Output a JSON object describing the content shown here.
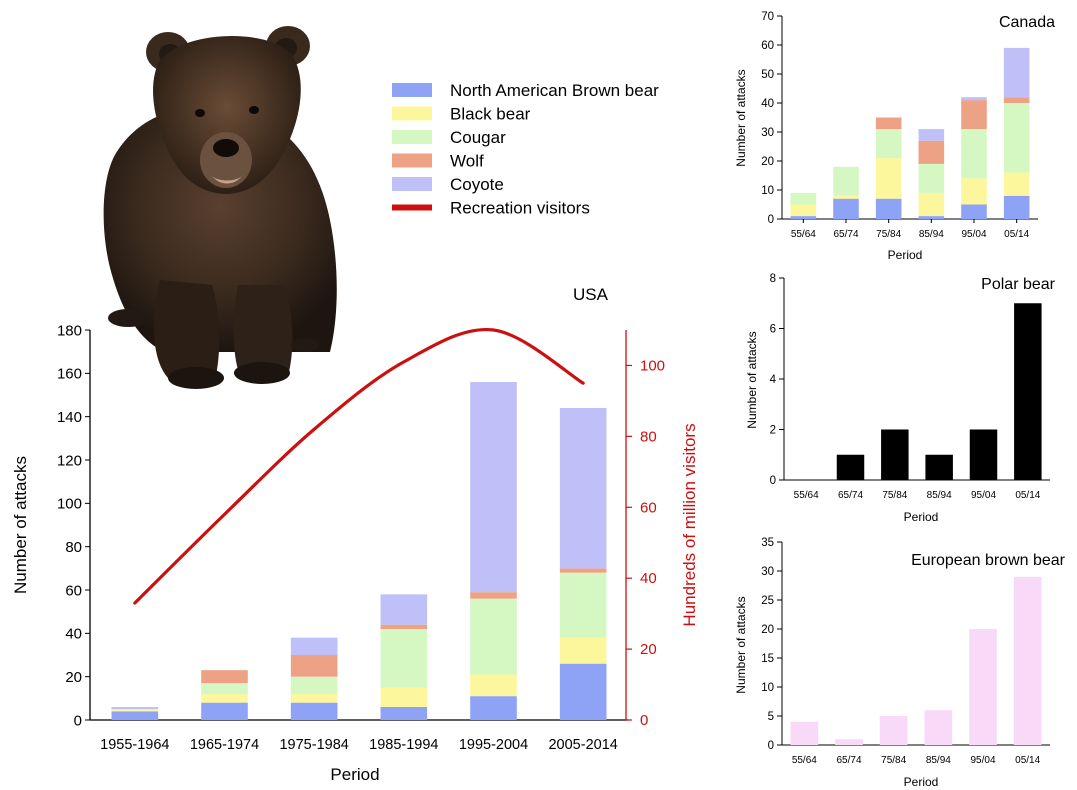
{
  "colors": {
    "brown_bear": "#8EA3F5",
    "black_bear": "#FCF79C",
    "cougar": "#D5F8C2",
    "wolf": "#EEA285",
    "coyote": "#BFC0F8",
    "visitors": "#CC1010",
    "polar": "#000000",
    "european": "#F8DAF8"
  },
  "legend": {
    "entries": [
      {
        "label": "North American Brown bear",
        "color_key": "brown_bear",
        "kind": "box"
      },
      {
        "label": "Black bear",
        "color_key": "black_bear",
        "kind": "box"
      },
      {
        "label": "Cougar",
        "color_key": "cougar",
        "kind": "box"
      },
      {
        "label": "Wolf",
        "color_key": "wolf",
        "kind": "box"
      },
      {
        "label": "Coyote",
        "color_key": "coyote",
        "kind": "box"
      },
      {
        "label": "Recreation visitors",
        "color_key": "visitors",
        "kind": "line"
      }
    ]
  },
  "chart_data": [
    {
      "id": "usa",
      "type": "bar",
      "stacked": true,
      "title": "USA",
      "xlabel": "Period",
      "ylabel": "Number of attacks",
      "y2label": "Hundreds of million visitors",
      "ylim": [
        0,
        180
      ],
      "yticks": [
        0,
        20,
        40,
        60,
        80,
        100,
        120,
        140,
        160,
        180
      ],
      "y2lim": [
        0,
        110
      ],
      "y2ticks": [
        0,
        20,
        40,
        60,
        80,
        100
      ],
      "categories": [
        "1955-1964",
        "1965-1974",
        "1975-1984",
        "1985-1994",
        "1995-2004",
        "2005-2014"
      ],
      "series": [
        {
          "name": "North American Brown bear",
          "color_key": "brown_bear",
          "values": [
            4,
            8,
            8,
            6,
            11,
            26
          ]
        },
        {
          "name": "Black bear",
          "color_key": "black_bear",
          "values": [
            1,
            4,
            4,
            9,
            10,
            12
          ]
        },
        {
          "name": "Cougar",
          "color_key": "cougar",
          "values": [
            0,
            5,
            8,
            27,
            35,
            30
          ]
        },
        {
          "name": "Wolf",
          "color_key": "wolf",
          "values": [
            0,
            6,
            10,
            2,
            3,
            2
          ]
        },
        {
          "name": "Coyote",
          "color_key": "coyote",
          "values": [
            1,
            0,
            8,
            14,
            97,
            74
          ]
        }
      ],
      "line_series": {
        "name": "Recreation visitors",
        "color_key": "visitors",
        "values": [
          33,
          58,
          82,
          101,
          110,
          95
        ]
      }
    },
    {
      "id": "canada",
      "type": "bar",
      "stacked": true,
      "title": "Canada",
      "xlabel": "Period",
      "ylabel": "Number of attacks",
      "ylim": [
        0,
        70
      ],
      "yticks": [
        0,
        10,
        20,
        30,
        40,
        50,
        60,
        70
      ],
      "categories": [
        "55/64",
        "65/74",
        "75/84",
        "85/94",
        "95/04",
        "05/14"
      ],
      "series": [
        {
          "name": "North American Brown bear",
          "color_key": "brown_bear",
          "values": [
            1,
            7,
            7,
            1,
            5,
            8
          ]
        },
        {
          "name": "Black bear",
          "color_key": "black_bear",
          "values": [
            4,
            1,
            14,
            8,
            9,
            8
          ]
        },
        {
          "name": "Cougar",
          "color_key": "cougar",
          "values": [
            4,
            10,
            10,
            10,
            17,
            24
          ]
        },
        {
          "name": "Wolf",
          "color_key": "wolf",
          "values": [
            0,
            0,
            4,
            8,
            10,
            2
          ]
        },
        {
          "name": "Coyote",
          "color_key": "coyote",
          "values": [
            0,
            0,
            0,
            4,
            1,
            17
          ]
        }
      ]
    },
    {
      "id": "polar",
      "type": "bar",
      "title": "Polar bear",
      "xlabel": "Period",
      "ylabel": "Number of attacks",
      "ylim": [
        0,
        8
      ],
      "yticks": [
        0,
        2,
        4,
        6,
        8
      ],
      "categories": [
        "55/64",
        "65/74",
        "75/84",
        "85/94",
        "95/04",
        "05/14"
      ],
      "series": [
        {
          "color_key": "polar",
          "values": [
            0,
            1,
            2,
            1,
            2,
            7
          ]
        }
      ]
    },
    {
      "id": "european",
      "type": "bar",
      "title": "European brown bear",
      "xlabel": "Period",
      "ylabel": "Number of attacks",
      "ylim": [
        0,
        35
      ],
      "yticks": [
        0,
        5,
        10,
        15,
        20,
        25,
        30,
        35
      ],
      "categories": [
        "55/64",
        "65/74",
        "75/84",
        "85/94",
        "95/04",
        "05/14"
      ],
      "series": [
        {
          "color_key": "european",
          "values": [
            4,
            1,
            5,
            6,
            20,
            29
          ]
        }
      ]
    }
  ]
}
